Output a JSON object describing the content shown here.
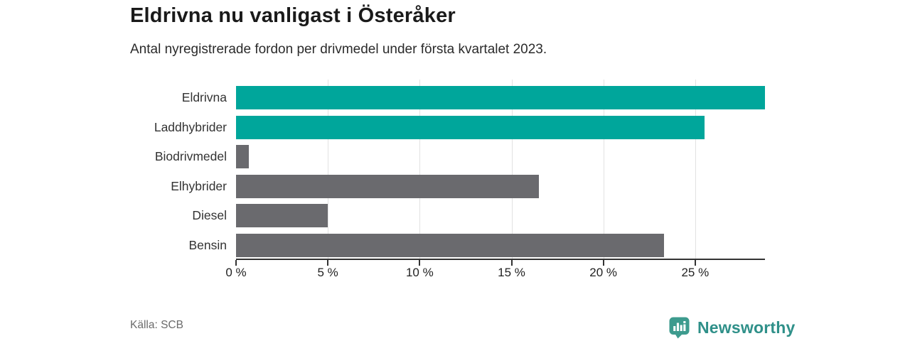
{
  "header": {
    "title": "Eldrivna nu vanligast i Österåker",
    "subtitle": "Antal nyregistrerade fordon per drivmedel under första kvartalet 2023."
  },
  "chart_data": {
    "type": "bar",
    "orientation": "horizontal",
    "title": "Eldrivna nu vanligast i Österåker",
    "subtitle": "Antal nyregistrerade fordon per drivmedel under första kvartalet 2023.",
    "categories": [
      "Eldrivna",
      "Laddhybrider",
      "Biodrivmedel",
      "Elhybrider",
      "Diesel",
      "Bensin"
    ],
    "values": [
      28.8,
      25.5,
      0.7,
      16.5,
      5.0,
      23.3
    ],
    "unit": "%",
    "xlim": [
      0,
      28.8
    ],
    "x_ticks": [
      0,
      5,
      10,
      15,
      20,
      25
    ],
    "x_tick_labels": [
      "0 %",
      "5 %",
      "10 %",
      "15 %",
      "20 %",
      "25 %"
    ],
    "grid": "vertical-on",
    "legend": "none",
    "bar_colors": [
      "#00a69b",
      "#00a69b",
      "#6a6a6e",
      "#6a6a6e",
      "#6a6a6e",
      "#6a6a6e"
    ],
    "colors": {
      "highlight": "#00a69b",
      "default": "#6a6a6e",
      "grid": "#e2e2e2",
      "axis": "#333333"
    }
  },
  "footer": {
    "source": "Källa: SCB",
    "brand": "Newsworthy",
    "brand_color": "#2f9089",
    "logo_icon_color": "#3d9b8e",
    "logo_icon": "bar-chart-pin-icon"
  }
}
